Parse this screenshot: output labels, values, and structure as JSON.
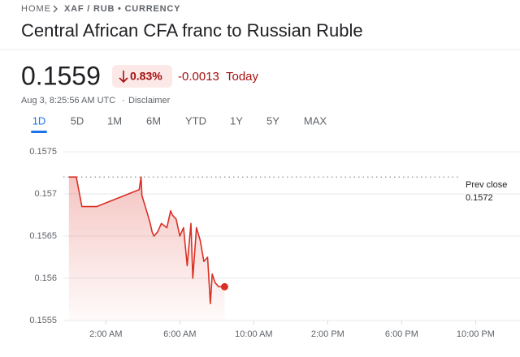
{
  "header": {
    "breadcrumb": [
      "HOME",
      "XAF / RUB • CURRENCY"
    ],
    "title": "Central African CFA franc to Russian Ruble",
    "price": "0.1559",
    "change_percent": "0.83%",
    "change": "-0.0013",
    "change_period": "Today",
    "timestamp": "Aug 3, 8:25:56 AM UTC",
    "disclaimer": "Disclaimer",
    "tabs": [
      "1D",
      "5D",
      "1M",
      "6M",
      "YTD",
      "1Y",
      "5Y",
      "MAX"
    ]
  },
  "chart_data": {
    "type": "line",
    "x": [
      0,
      0.4,
      0.7,
      1.5,
      3.8,
      3.9,
      3.95,
      4.2,
      4.4,
      4.5,
      4.6,
      4.8,
      5.0,
      5.3,
      5.5,
      5.6,
      5.8,
      6.0,
      6.2,
      6.4,
      6.6,
      6.7,
      6.9,
      7.1,
      7.3,
      7.5,
      7.65,
      7.75,
      7.9,
      8.1,
      8.42
    ],
    "series": [
      {
        "name": "XAF / RUB",
        "color": "#d93025",
        "values": [
          0.1572,
          0.1572,
          0.15685,
          0.15685,
          0.15705,
          0.1572,
          0.15698,
          0.1568,
          0.15665,
          0.15655,
          0.1565,
          0.15655,
          0.15665,
          0.1566,
          0.1568,
          0.15675,
          0.1567,
          0.1565,
          0.1566,
          0.15615,
          0.15665,
          0.156,
          0.1566,
          0.15645,
          0.1562,
          0.15625,
          0.1557,
          0.15605,
          0.15595,
          0.1559,
          0.1559
        ]
      }
    ],
    "xlim": [
      -0.3,
      24.4
    ],
    "xticks": [
      {
        "value": 2,
        "label": "2:00 AM"
      },
      {
        "value": 6,
        "label": "6:00 AM"
      },
      {
        "value": 10,
        "label": "10:00 AM"
      },
      {
        "value": 14,
        "label": "2:00 PM"
      },
      {
        "value": 18,
        "label": "6:00 PM"
      },
      {
        "value": 22,
        "label": "10:00 PM"
      }
    ],
    "ylim": [
      0.1555,
      0.1575
    ],
    "yticks": [
      0.1555,
      0.156,
      0.1565,
      0.157,
      0.1575
    ],
    "grid": true,
    "prev_close": {
      "label": "Prev close",
      "value": 0.1572
    }
  }
}
